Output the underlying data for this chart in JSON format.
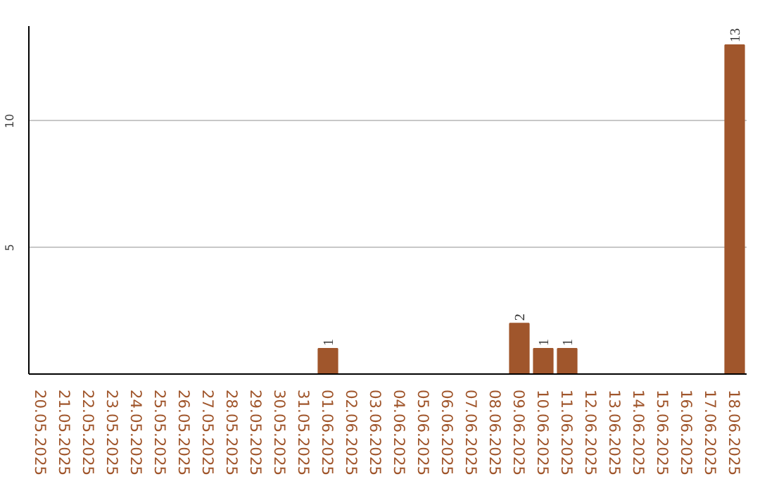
{
  "chart_data": {
    "type": "bar",
    "categories": [
      "20.05.2025",
      "21.05.2025",
      "22.05.2025",
      "23.05.2025",
      "24.05.2025",
      "25.05.2025",
      "26.05.2025",
      "27.05.2025",
      "28.05.2025",
      "29.05.2025",
      "30.05.2025",
      "31.05.2025",
      "01.06.2025",
      "02.06.2025",
      "03.06.2025",
      "04.06.2025",
      "05.06.2025",
      "06.06.2025",
      "07.06.2025",
      "08.06.2025",
      "09.06.2025",
      "10.06.2025",
      "11.06.2025",
      "12.06.2025",
      "13.06.2025",
      "14.06.2025",
      "15.06.2025",
      "16.06.2025",
      "17.06.2025",
      "18.06.2025"
    ],
    "values": [
      0,
      0,
      0,
      0,
      0,
      0,
      0,
      0,
      0,
      0,
      0,
      0,
      1,
      0,
      0,
      0,
      0,
      0,
      0,
      0,
      2,
      1,
      1,
      0,
      0,
      0,
      0,
      0,
      0,
      13
    ],
    "value_labels": [
      null,
      null,
      null,
      null,
      null,
      null,
      null,
      null,
      null,
      null,
      null,
      null,
      "1",
      null,
      null,
      null,
      null,
      null,
      null,
      null,
      "2",
      "1",
      "1",
      null,
      null,
      null,
      null,
      null,
      null,
      "13"
    ],
    "color": "#a0562c",
    "ylim": [
      0,
      13.75
    ],
    "yticks": [
      5,
      10
    ],
    "grid": "y"
  }
}
